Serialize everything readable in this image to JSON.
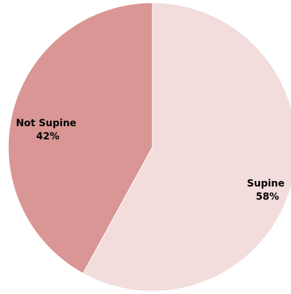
{
  "chart_data": {
    "type": "pie",
    "title": "",
    "start_angle_deg": 0,
    "direction": "clockwise",
    "slices": [
      {
        "name": "Supine",
        "value": 58,
        "label": "Supine",
        "pct_label": "58%",
        "color": "#f2dcdc"
      },
      {
        "name": "Not Supine",
        "value": 42,
        "label": "Not Supine",
        "pct_label": "42%",
        "color": "#d99694"
      }
    ]
  }
}
